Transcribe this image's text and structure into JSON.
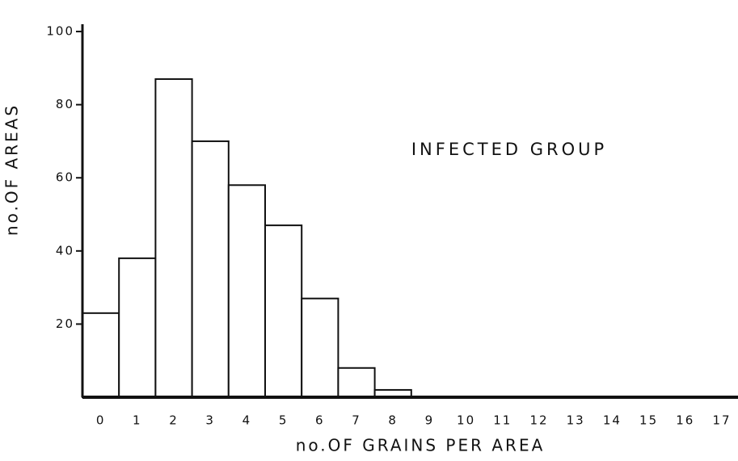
{
  "chart_data": {
    "type": "bar",
    "title": "INFECTED GROUP",
    "x_label": "no.OF GRAINS PER AREA",
    "y_label": "no.OF AREAS",
    "categories": [
      "0",
      "1",
      "2",
      "3",
      "4",
      "5",
      "6",
      "7",
      "8",
      "9",
      "10",
      "11",
      "12",
      "13",
      "14",
      "15",
      "16",
      "17"
    ],
    "values": [
      23,
      38,
      87,
      70,
      58,
      47,
      27,
      8,
      2,
      0,
      0,
      0,
      0,
      0,
      0,
      0,
      0,
      0
    ],
    "color": "#ffffff",
    "ylim": [
      0,
      102
    ],
    "yticks": [
      20,
      40,
      60,
      80,
      100
    ]
  }
}
